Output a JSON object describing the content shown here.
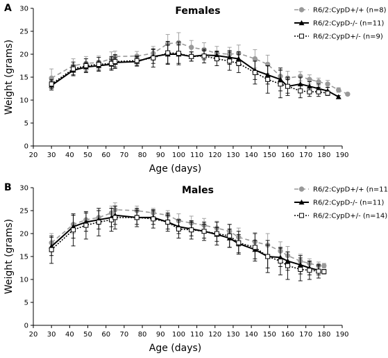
{
  "chart_data": [
    {
      "type": "line",
      "panel_label": "A",
      "title": "Females",
      "xlabel": "Age (days)",
      "ylabel": "Weight (grams)",
      "xlim": [
        20,
        190
      ],
      "ylim": [
        0,
        30
      ],
      "xticks": [
        20,
        30,
        40,
        50,
        60,
        70,
        80,
        90,
        100,
        110,
        120,
        130,
        140,
        150,
        160,
        170,
        180,
        190
      ],
      "yticks": [
        0,
        5,
        10,
        15,
        20,
        25,
        30
      ],
      "grid": false,
      "legend_position": "top-right",
      "series": [
        {
          "name": "R6/2:CypD+/+ (n=8)",
          "color": "#999999",
          "line": "dashed",
          "marker": "circle",
          "x": [
            30,
            42,
            49,
            56,
            63,
            65,
            77,
            86,
            94,
            100,
            107,
            114,
            121,
            128,
            133,
            142,
            149,
            156,
            160,
            167,
            172,
            177,
            182,
            188,
            193
          ],
          "y": [
            14.8,
            17.5,
            18.0,
            18.2,
            19.0,
            19.5,
            19.6,
            20.2,
            22.3,
            22.5,
            21.5,
            21.0,
            20.2,
            20.0,
            20.2,
            19.0,
            17.8,
            15.2,
            14.8,
            15.2,
            14.5,
            14.0,
            13.5,
            12.2,
            11.3
          ],
          "error": [
            2.0,
            1.5,
            1.5,
            1.4,
            1.5,
            1.2,
            1.0,
            1.5,
            2.0,
            2.2,
            1.5,
            1.5,
            1.5,
            1.5,
            1.8,
            2.0,
            2.0,
            1.5,
            1.5,
            1.0,
            1.0,
            0.8,
            0.8,
            0.5,
            0.3
          ]
        },
        {
          "name": "R6/2:CypD-/- (n=11)",
          "color": "#000000",
          "line": "solid",
          "marker": "triangle",
          "x": [
            30,
            42,
            49,
            56,
            63,
            65,
            77,
            86,
            94,
            100,
            107,
            114,
            121,
            128,
            133,
            142,
            149,
            156,
            160,
            167,
            172,
            177,
            182,
            188
          ],
          "y": [
            13.2,
            16.5,
            17.2,
            17.5,
            17.8,
            18.2,
            18.4,
            19.5,
            20.0,
            20.0,
            19.5,
            19.8,
            19.7,
            19.3,
            19.0,
            16.5,
            15.5,
            14.5,
            13.0,
            13.5,
            13.0,
            12.5,
            12.0,
            10.7
          ],
          "error": [
            1.0,
            1.0,
            1.0,
            1.0,
            1.0,
            1.0,
            1.0,
            1.5,
            2.0,
            2.0,
            1.0,
            1.0,
            1.0,
            1.5,
            1.5,
            2.0,
            2.0,
            2.5,
            1.5,
            1.5,
            1.0,
            1.0,
            0.8,
            0.3
          ]
        },
        {
          "name": "R6/2:CypD+/- (n=9)",
          "color": "#000000",
          "line": "dotted",
          "marker": "square",
          "x": [
            30,
            42,
            49,
            56,
            63,
            65,
            77,
            86,
            94,
            100,
            107,
            114,
            121,
            128,
            133,
            142,
            149,
            156,
            160,
            167,
            172,
            177,
            182
          ],
          "y": [
            13.5,
            16.8,
            17.5,
            17.8,
            18.0,
            18.4,
            18.6,
            19.2,
            20.3,
            20.2,
            19.5,
            19.6,
            19.0,
            18.5,
            18.0,
            16.0,
            14.5,
            13.5,
            13.0,
            12.0,
            11.8,
            11.8,
            11.5
          ],
          "error": [
            1.0,
            1.5,
            1.5,
            1.5,
            1.5,
            1.5,
            1.0,
            2.0,
            2.5,
            2.5,
            1.0,
            1.5,
            1.5,
            2.0,
            2.0,
            2.5,
            3.0,
            3.0,
            2.0,
            1.5,
            1.0,
            1.0,
            0.5
          ]
        }
      ]
    },
    {
      "type": "line",
      "panel_label": "B",
      "title": "Males",
      "xlabel": "Age (days)",
      "ylabel": "Weight (grams)",
      "xlim": [
        20,
        190
      ],
      "ylim": [
        0,
        30
      ],
      "xticks": [
        20,
        30,
        40,
        50,
        60,
        70,
        80,
        90,
        100,
        110,
        120,
        130,
        140,
        150,
        160,
        170,
        180,
        190
      ],
      "yticks": [
        0,
        5,
        10,
        15,
        20,
        25,
        30
      ],
      "grid": false,
      "legend_position": "top-right",
      "series": [
        {
          "name": "R6/2:CypD+/+ (n=11)",
          "color": "#999999",
          "line": "dashed",
          "marker": "circle",
          "x": [
            30,
            42,
            49,
            56,
            63,
            65,
            77,
            86,
            94,
            100,
            107,
            114,
            121,
            128,
            133,
            142,
            149,
            156,
            160,
            167,
            172,
            177,
            180
          ],
          "y": [
            18.0,
            22.0,
            23.0,
            23.5,
            24.5,
            25.2,
            25.0,
            24.5,
            24.0,
            22.8,
            22.3,
            21.8,
            21.2,
            20.5,
            19.2,
            18.2,
            17.5,
            16.2,
            15.2,
            14.0,
            13.5,
            13.0,
            13.0
          ],
          "error": [
            2.0,
            2.0,
            1.5,
            1.5,
            1.5,
            1.5,
            1.0,
            1.0,
            1.0,
            1.5,
            1.5,
            1.5,
            1.5,
            1.5,
            2.0,
            2.0,
            2.5,
            2.0,
            2.0,
            1.5,
            1.0,
            0.8,
            0.5
          ]
        },
        {
          "name": "R6/2:CypD-/- (n=11)",
          "color": "#000000",
          "line": "solid",
          "marker": "triangle",
          "x": [
            30,
            42,
            49,
            56,
            63,
            65,
            77,
            86,
            94,
            100,
            107,
            114,
            121,
            128,
            133,
            142,
            149,
            156,
            160,
            167,
            172,
            177
          ],
          "y": [
            17.2,
            21.5,
            22.5,
            23.0,
            23.5,
            24.0,
            23.5,
            23.5,
            22.5,
            21.5,
            21.0,
            20.5,
            19.8,
            19.0,
            17.8,
            16.5,
            15.0,
            14.8,
            14.0,
            13.2,
            12.5,
            12.0
          ],
          "error": [
            2.0,
            2.5,
            2.0,
            2.0,
            2.0,
            2.0,
            1.5,
            1.5,
            1.5,
            1.5,
            1.5,
            1.5,
            1.5,
            2.0,
            2.0,
            2.0,
            2.5,
            2.0,
            2.0,
            2.0,
            1.5,
            1.0
          ]
        },
        {
          "name": "R6/2:CypD+/- (n=14)",
          "color": "#000000",
          "line": "dotted",
          "marker": "square",
          "x": [
            30,
            42,
            49,
            56,
            63,
            65,
            77,
            86,
            94,
            100,
            107,
            114,
            121,
            128,
            133,
            142,
            149,
            156,
            160,
            167,
            172,
            177,
            180
          ],
          "y": [
            16.5,
            20.8,
            21.8,
            22.5,
            23.0,
            23.5,
            23.5,
            23.2,
            22.5,
            21.0,
            20.8,
            20.5,
            20.0,
            19.5,
            18.0,
            17.0,
            15.0,
            14.0,
            13.0,
            12.2,
            12.0,
            11.8,
            11.7
          ],
          "error": [
            3.0,
            3.5,
            3.0,
            3.0,
            2.5,
            2.5,
            2.0,
            2.0,
            2.0,
            2.0,
            2.0,
            2.0,
            2.5,
            2.5,
            2.5,
            3.0,
            3.5,
            3.0,
            3.0,
            2.5,
            2.0,
            1.5,
            0.5
          ]
        }
      ]
    }
  ]
}
